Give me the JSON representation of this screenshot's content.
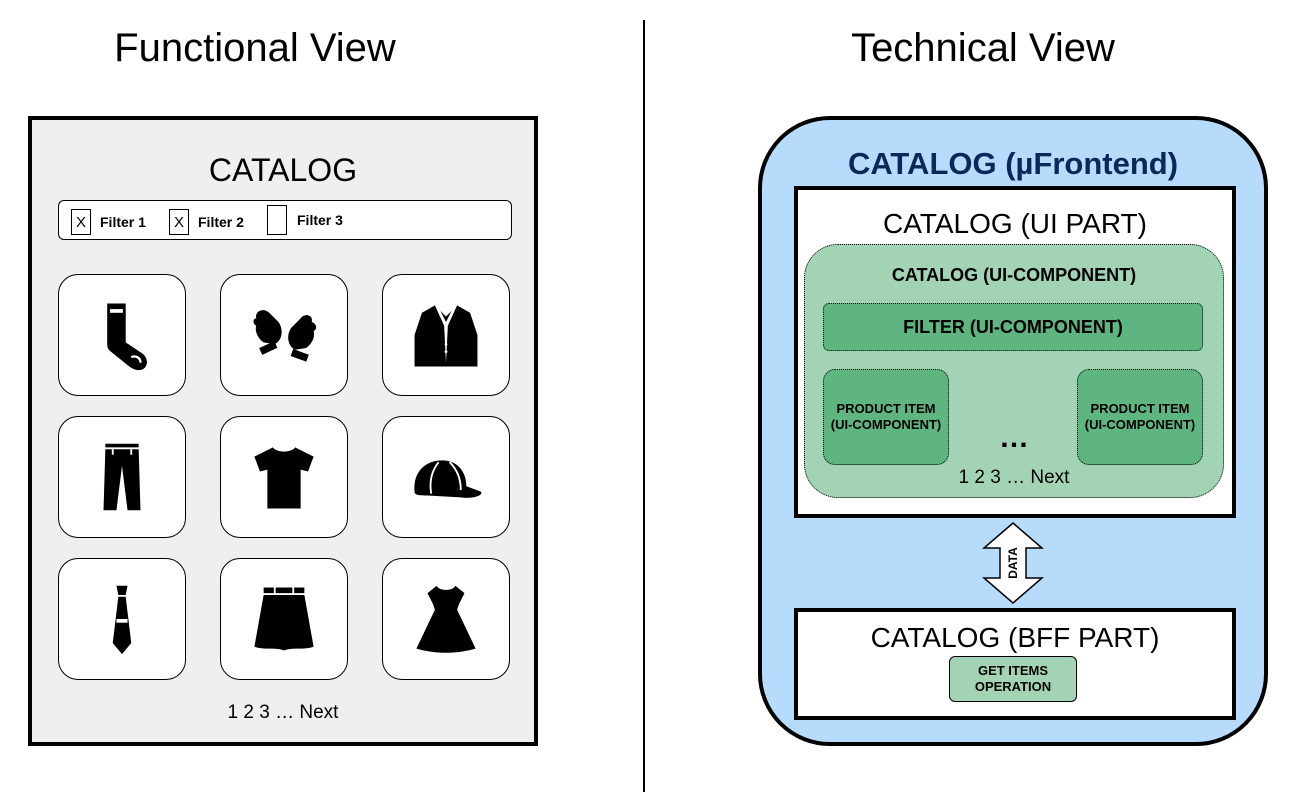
{
  "functional_view": {
    "heading": "Functional View",
    "catalog_title": "CATALOG",
    "filters": [
      {
        "mark": "X",
        "label": "Filter 1",
        "checked": true
      },
      {
        "mark": "X",
        "label": "Filter 2",
        "checked": true
      },
      {
        "mark": "",
        "label": "Filter 3",
        "checked": false
      }
    ],
    "product_icons": [
      "sock-icon",
      "mittens-icon",
      "jacket-icon",
      "pants-icon",
      "tshirt-icon",
      "cap-icon",
      "tie-icon",
      "skirt-icon",
      "dress-icon"
    ],
    "pagination": "1 2 3 … Next"
  },
  "technical_view": {
    "heading": "Technical View",
    "microfrontend_title": "CATALOG (µFrontend)",
    "ui_part_title": "CATALOG (UI PART)",
    "catalog_component": "CATALOG (UI-COMPONENT)",
    "filter_component": "FILTER (UI-COMPONENT)",
    "product_component_line1": "PRODUCT ITEM",
    "product_component_line2": "(UI-COMPONENT)",
    "ellipsis": "…",
    "pagination": "1 2 3 … Next",
    "data_label": "DATA",
    "bff_part_title": "CATALOG (BFF PART)",
    "operation_line1": "GET ITEMS",
    "operation_line2": "OPERATION"
  },
  "colors": {
    "panel_bg": "#efefef",
    "microfrontend_bg": "#b7dbfb",
    "microfrontend_title": "#0b2858",
    "component_light": "#a1d3b4",
    "component_dark": "#5fb57f"
  }
}
